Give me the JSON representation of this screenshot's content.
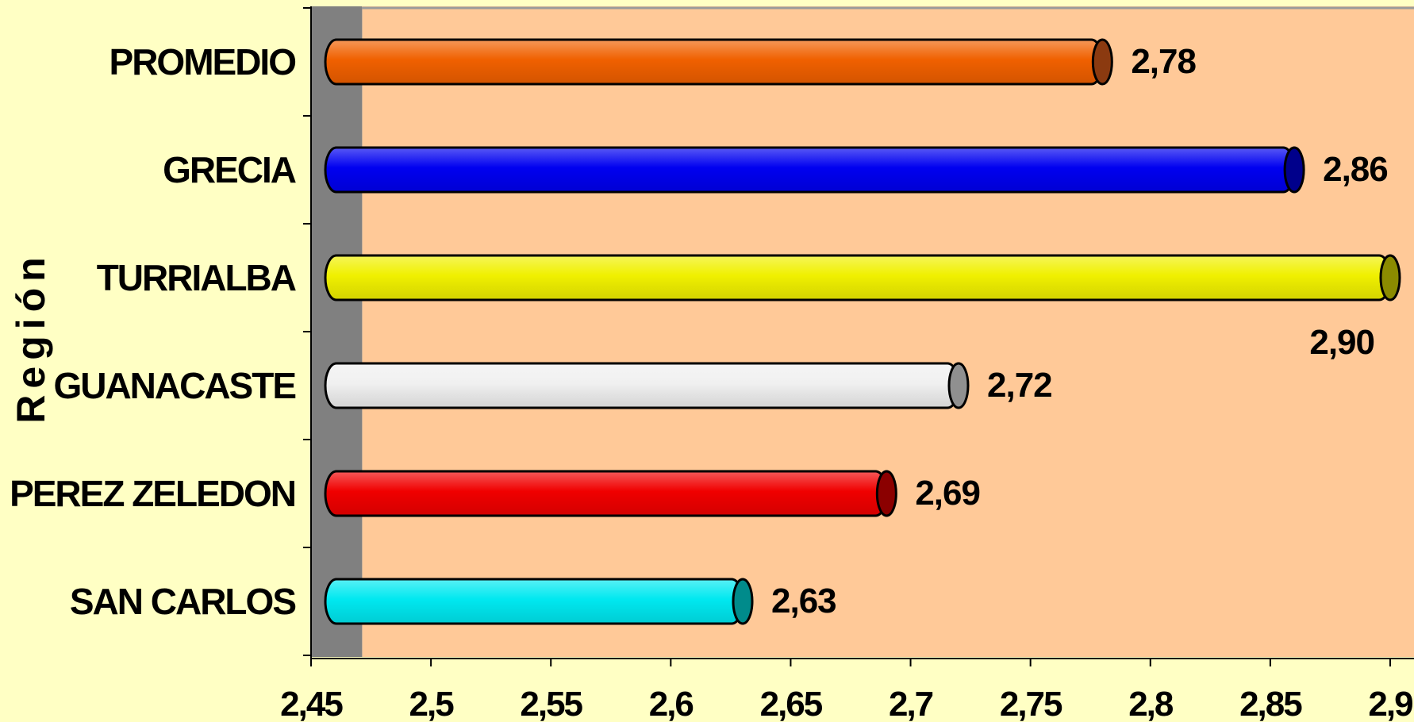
{
  "chart_data": {
    "type": "bar",
    "orientation": "horizontal",
    "ylabel": "Región",
    "xlabel": "",
    "xlim": [
      2.45,
      2.9
    ],
    "x_ticks": [
      2.45,
      2.5,
      2.55,
      2.6,
      2.65,
      2.7,
      2.75,
      2.8,
      2.85,
      2.9
    ],
    "x_tick_labels": [
      "2,45",
      "2,5",
      "2,55",
      "2,6",
      "2,65",
      "2,7",
      "2,75",
      "2,8",
      "2,85",
      "2,9"
    ],
    "categories": [
      "PROMEDIO",
      "GRECIA",
      "TURRIALBA",
      "GUANACASTE",
      "PEREZ ZELEDON",
      "SAN CARLOS"
    ],
    "values": [
      2.78,
      2.86,
      2.9,
      2.72,
      2.69,
      2.63
    ],
    "value_labels": [
      "2,78",
      "2,86",
      "2,90",
      "2,72",
      "2,69",
      "2,63"
    ],
    "bar_colors": [
      "#F06000",
      "#0000F0",
      "#F0F000",
      "#F0F0F0",
      "#F00000",
      "#00E8F0"
    ],
    "end_cap_colors": [
      "#8B3A10",
      "#00008B",
      "#8B8B00",
      "#909090",
      "#8B0000",
      "#008B8B"
    ],
    "grid": false,
    "legend": "none",
    "background": "#FFFFC4",
    "plot_background": "#FFC998",
    "wall_color": "#808080"
  }
}
